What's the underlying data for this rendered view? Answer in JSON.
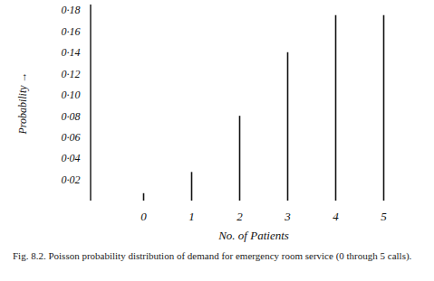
{
  "chart_data": {
    "type": "stem",
    "caption": "Fig. 8.2.  Poisson probability distribution of demand for emergency room service (0 through 5 calls).",
    "x_label": "No. of Patients",
    "y_label": "Probability",
    "categories": [
      "0",
      "1",
      "2",
      "3",
      "4",
      "5"
    ],
    "values": [
      0.007,
      0.027,
      0.08,
      0.14,
      0.175,
      0.175
    ],
    "color": "#111111",
    "ylim": [
      0,
      0.185
    ],
    "yticks": [
      {
        "value": 0.02,
        "label": "0·02"
      },
      {
        "value": 0.04,
        "label": "0·04"
      },
      {
        "value": 0.06,
        "label": "0·06"
      },
      {
        "value": 0.08,
        "label": "0·08"
      },
      {
        "value": 0.1,
        "label": "0·10"
      },
      {
        "value": 0.12,
        "label": "0·12"
      },
      {
        "value": 0.14,
        "label": "0·14"
      },
      {
        "value": 0.16,
        "label": "0·16"
      },
      {
        "value": 0.18,
        "label": "0·18"
      }
    ],
    "grid": false
  }
}
